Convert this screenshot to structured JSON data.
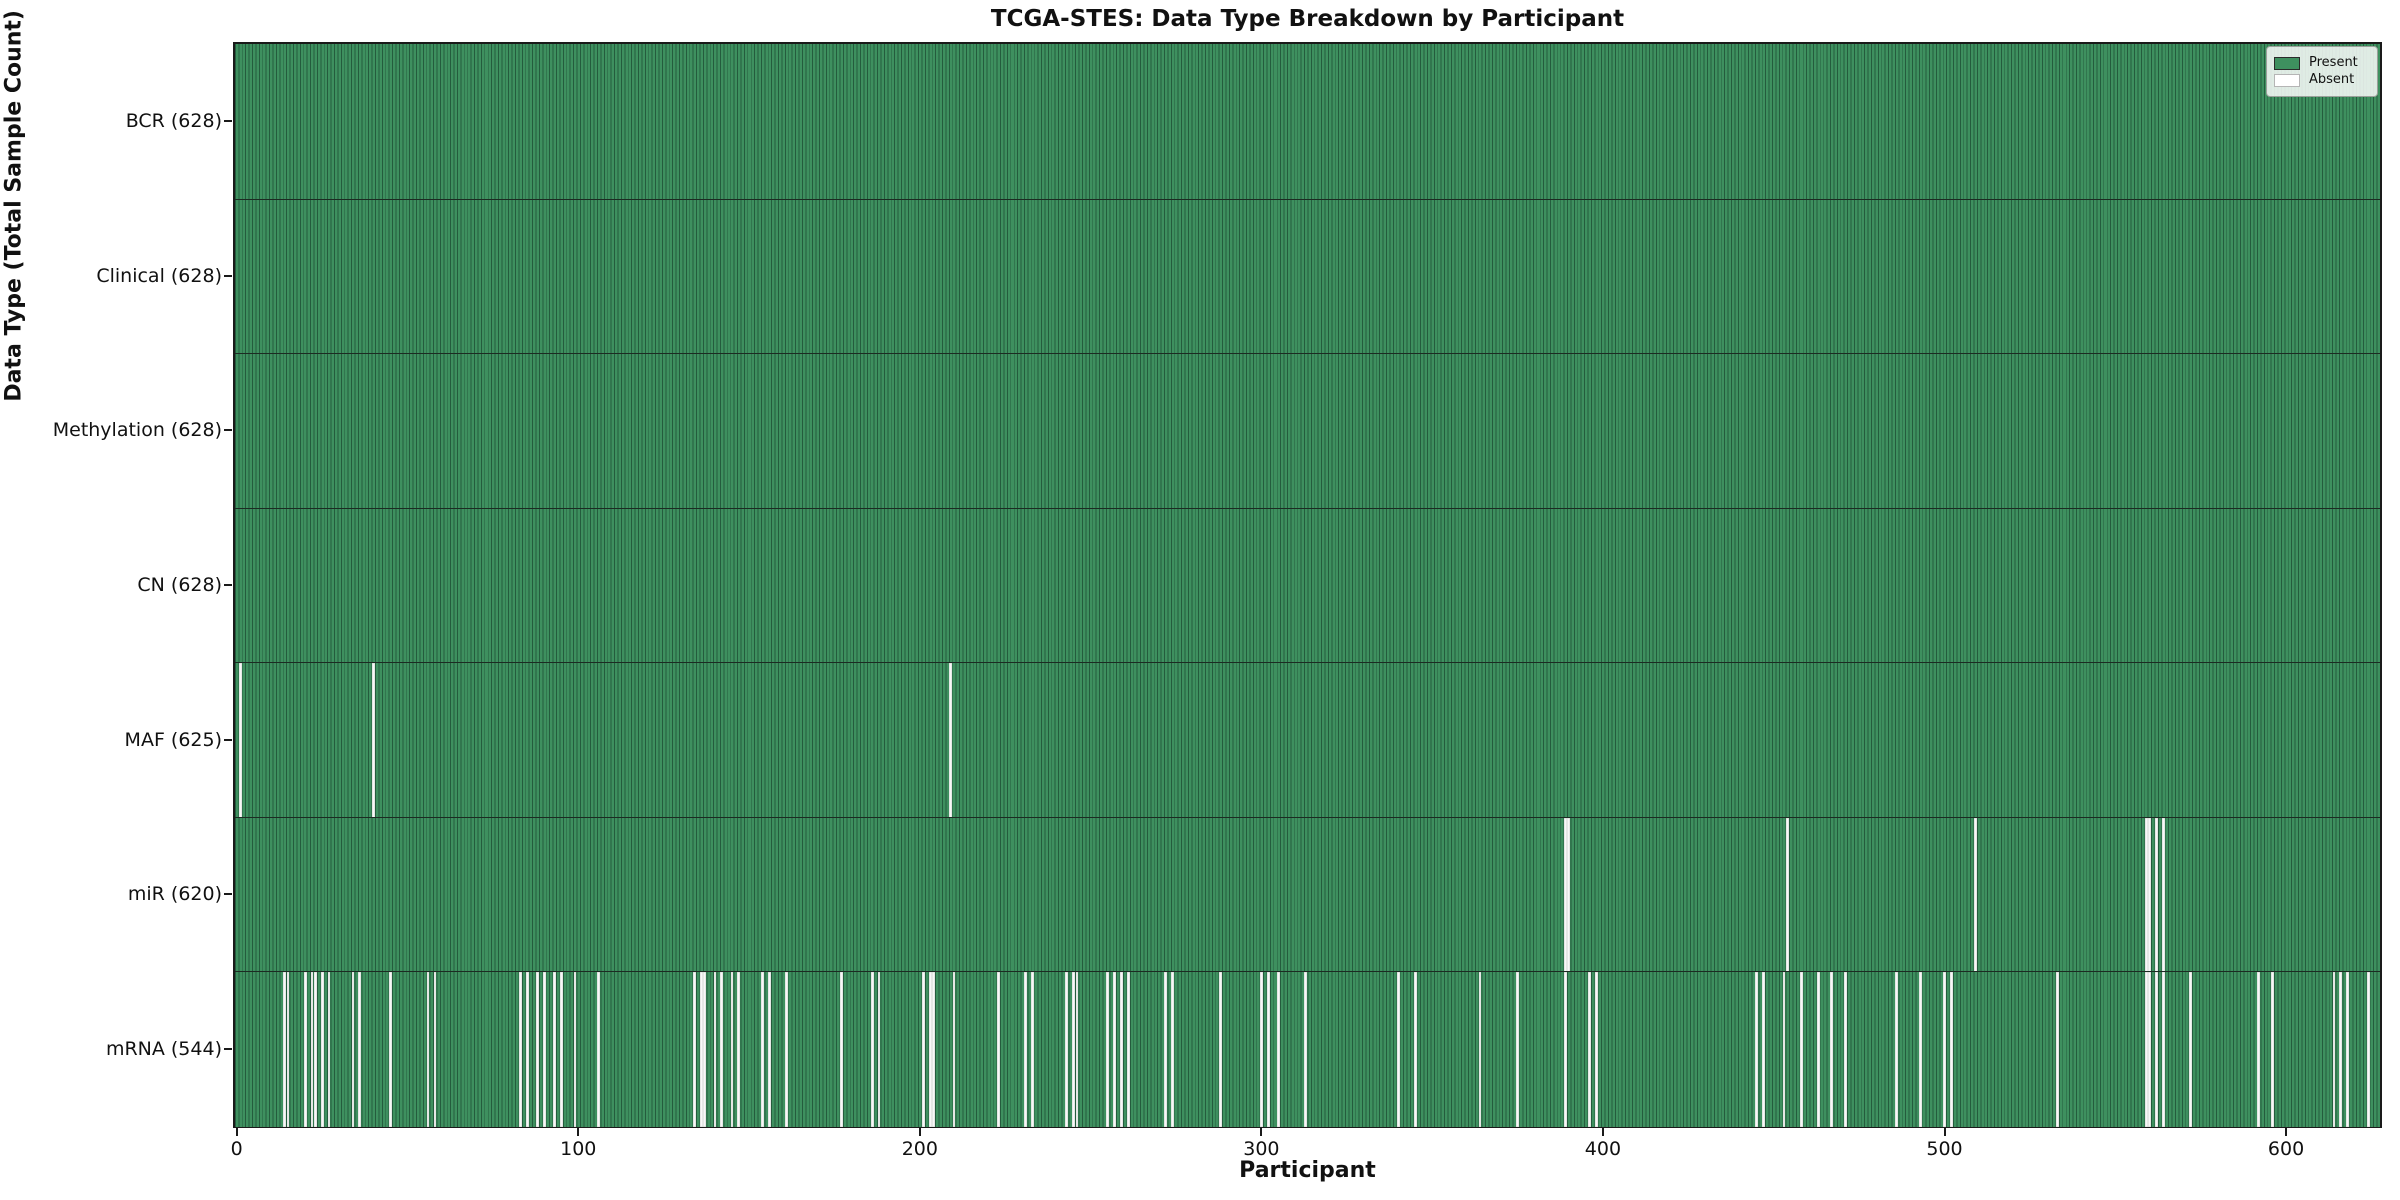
{
  "chart_data": {
    "type": "heatmap",
    "title": "TCGA-STES: Data Type Breakdown by Participant",
    "xlabel": "Participant",
    "ylabel": "Data Type (Total Sample Count)",
    "n_participants": 628,
    "x_ticks": [
      0,
      100,
      200,
      300,
      400,
      500,
      600
    ],
    "legend": [
      {
        "label": "Present",
        "color": "#3e905f",
        "edge": "#2a2a2a"
      },
      {
        "label": "Absent",
        "color": "#ffffff",
        "edge": "#b5b5b5"
      }
    ],
    "colors": {
      "present_fill": "#3e905f",
      "present_edge": "#245c3d",
      "absent_fill": "#f8f8f8",
      "row_boundary": "#1c2b22",
      "spine": "#1a1a1a"
    },
    "rows": [
      {
        "label": "BCR (628)",
        "name": "BCR",
        "count": 628,
        "absent_indices": []
      },
      {
        "label": "Clinical (628)",
        "name": "Clinical",
        "count": 628,
        "absent_indices": []
      },
      {
        "label": "Methylation (628)",
        "name": "Methylation",
        "count": 628,
        "absent_indices": []
      },
      {
        "label": "CN (628)",
        "name": "CN",
        "count": 628,
        "absent_indices": []
      },
      {
        "label": "MAF (625)",
        "name": "MAF",
        "count": 625,
        "absent_indices": [
          1,
          40,
          209
        ]
      },
      {
        "label": "miR (620)",
        "name": "miR",
        "count": 620,
        "absent_indices": [
          389,
          390,
          454,
          509,
          559,
          560,
          562,
          564
        ]
      },
      {
        "label": "mRNA (544)",
        "name": "mRNA",
        "count": 544,
        "absent_indices": [
          14,
          15,
          20,
          22,
          23,
          25,
          27,
          34,
          36,
          45,
          56,
          58,
          83,
          85,
          88,
          90,
          93,
          95,
          99,
          106,
          134,
          136,
          137,
          140,
          142,
          145,
          147,
          154,
          156,
          161,
          177,
          186,
          188,
          201,
          203,
          204,
          210,
          223,
          231,
          233,
          243,
          245,
          246,
          255,
          257,
          259,
          261,
          272,
          274,
          288,
          300,
          302,
          305,
          313,
          340,
          345,
          364,
          375,
          389,
          396,
          398,
          445,
          447,
          453,
          458,
          463,
          467,
          471,
          486,
          493,
          500,
          502,
          533,
          559,
          560,
          562,
          564,
          572,
          592,
          596,
          614,
          616,
          618,
          624
        ]
      }
    ]
  }
}
